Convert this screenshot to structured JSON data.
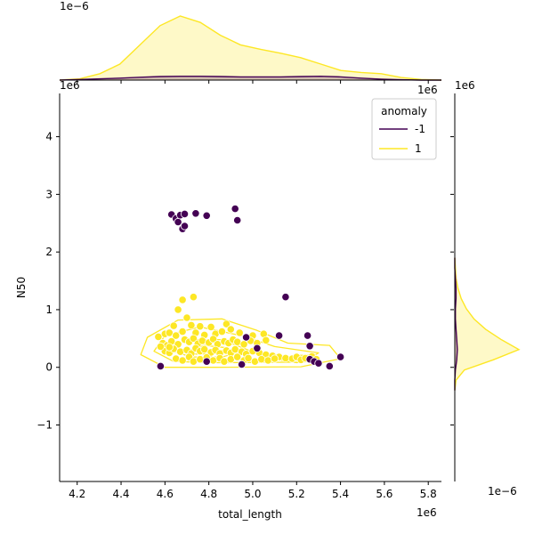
{
  "chart_data": {
    "type": "scatter",
    "xlabel": "total_length",
    "ylabel": "N50",
    "x_scale_label": "1e6",
    "y_scale_label": "1e6",
    "top_marginal_scale_label": "1e−6",
    "right_marginal_scale_label": "1e−6",
    "right_marginal_top_label": "1e6",
    "top_marginal_right_label": "1e6",
    "xlim": [
      4.12,
      5.86
    ],
    "ylim": [
      -1.98,
      4.75
    ],
    "xticks": [
      "4.2",
      "4.4",
      "4.6",
      "4.8",
      "5.0",
      "5.2",
      "5.4",
      "5.6",
      "5.8"
    ],
    "yticks": [
      "−1",
      "0",
      "1",
      "2",
      "3",
      "4"
    ],
    "legend": {
      "title": "anomaly",
      "placement": "top-right",
      "entries": [
        {
          "label": "-1",
          "color": "#440154"
        },
        {
          "label": "1",
          "color": "#fde725"
        }
      ]
    },
    "series": [
      {
        "name": "-1",
        "color": "#440154",
        "points": [
          [
            4.63,
            2.65
          ],
          [
            4.65,
            2.58
          ],
          [
            4.66,
            2.52
          ],
          [
            4.67,
            2.64
          ],
          [
            4.69,
            2.66
          ],
          [
            4.68,
            2.4
          ],
          [
            4.69,
            2.45
          ],
          [
            4.74,
            2.67
          ],
          [
            4.79,
            2.63
          ],
          [
            4.92,
            2.75
          ],
          [
            4.93,
            2.55
          ],
          [
            5.15,
            1.22
          ],
          [
            5.12,
            0.55
          ],
          [
            5.25,
            0.55
          ],
          [
            5.26,
            0.37
          ],
          [
            5.26,
            0.14
          ],
          [
            5.28,
            0.1
          ],
          [
            5.3,
            0.07
          ],
          [
            5.35,
            0.02
          ],
          [
            5.4,
            0.18
          ],
          [
            4.58,
            0.02
          ],
          [
            4.79,
            0.1
          ],
          [
            4.95,
            0.05
          ],
          [
            5.02,
            0.33
          ],
          [
            4.97,
            0.52
          ]
        ]
      },
      {
        "name": "1",
        "color": "#fde725",
        "points": [
          [
            4.68,
            1.17
          ],
          [
            4.73,
            1.22
          ],
          [
            4.66,
            1.0
          ],
          [
            4.7,
            0.86
          ],
          [
            4.64,
            0.72
          ],
          [
            4.72,
            0.73
          ],
          [
            4.76,
            0.71
          ],
          [
            4.81,
            0.7
          ],
          [
            4.88,
            0.75
          ],
          [
            4.6,
            0.58
          ],
          [
            4.62,
            0.6
          ],
          [
            4.57,
            0.53
          ],
          [
            4.65,
            0.55
          ],
          [
            4.68,
            0.62
          ],
          [
            4.74,
            0.6
          ],
          [
            4.78,
            0.56
          ],
          [
            4.83,
            0.58
          ],
          [
            4.86,
            0.62
          ],
          [
            4.9,
            0.66
          ],
          [
            4.94,
            0.6
          ],
          [
            5.0,
            0.55
          ],
          [
            5.05,
            0.58
          ],
          [
            4.59,
            0.42
          ],
          [
            4.61,
            0.38
          ],
          [
            4.63,
            0.45
          ],
          [
            4.66,
            0.4
          ],
          [
            4.69,
            0.48
          ],
          [
            4.71,
            0.44
          ],
          [
            4.73,
            0.5
          ],
          [
            4.75,
            0.41
          ],
          [
            4.77,
            0.46
          ],
          [
            4.8,
            0.43
          ],
          [
            4.82,
            0.49
          ],
          [
            4.84,
            0.4
          ],
          [
            4.87,
            0.45
          ],
          [
            4.89,
            0.42
          ],
          [
            4.91,
            0.48
          ],
          [
            4.93,
            0.44
          ],
          [
            4.96,
            0.4
          ],
          [
            4.99,
            0.46
          ],
          [
            5.02,
            0.42
          ],
          [
            5.06,
            0.47
          ],
          [
            4.6,
            0.28
          ],
          [
            4.62,
            0.25
          ],
          [
            4.64,
            0.32
          ],
          [
            4.67,
            0.27
          ],
          [
            4.7,
            0.3
          ],
          [
            4.72,
            0.24
          ],
          [
            4.74,
            0.33
          ],
          [
            4.76,
            0.28
          ],
          [
            4.78,
            0.31
          ],
          [
            4.81,
            0.26
          ],
          [
            4.83,
            0.3
          ],
          [
            4.85,
            0.24
          ],
          [
            4.88,
            0.29
          ],
          [
            4.9,
            0.25
          ],
          [
            4.92,
            0.31
          ],
          [
            4.95,
            0.27
          ],
          [
            4.97,
            0.23
          ],
          [
            5.0,
            0.28
          ],
          [
            5.03,
            0.25
          ],
          [
            5.06,
            0.22
          ],
          [
            5.09,
            0.2
          ],
          [
            5.12,
            0.18
          ],
          [
            5.15,
            0.16
          ],
          [
            5.18,
            0.15
          ],
          [
            5.2,
            0.18
          ],
          [
            5.22,
            0.13
          ],
          [
            5.24,
            0.16
          ],
          [
            5.27,
            0.19
          ],
          [
            5.29,
            0.14
          ],
          [
            4.65,
            0.15
          ],
          [
            4.68,
            0.12
          ],
          [
            4.71,
            0.18
          ],
          [
            4.73,
            0.1
          ],
          [
            4.76,
            0.14
          ],
          [
            4.79,
            0.17
          ],
          [
            4.82,
            0.12
          ],
          [
            4.85,
            0.16
          ],
          [
            4.87,
            0.1
          ],
          [
            4.9,
            0.14
          ],
          [
            4.93,
            0.18
          ],
          [
            4.96,
            0.12
          ],
          [
            4.98,
            0.16
          ],
          [
            5.01,
            0.1
          ],
          [
            5.04,
            0.14
          ],
          [
            5.07,
            0.12
          ],
          [
            5.1,
            0.15
          ],
          [
            4.62,
            0.35
          ],
          [
            4.58,
            0.36
          ]
        ]
      }
    ],
    "top_marginal": {
      "series": [
        {
          "name": "1",
          "color": "#fde725",
          "density": [
            0,
            0.02,
            0.1,
            0.25,
            0.55,
            0.85,
            1.0,
            0.9,
            0.7,
            0.55,
            0.48,
            0.42,
            0.35,
            0.25,
            0.15,
            0.12,
            0.1,
            0.04,
            0.01,
            0
          ]
        },
        {
          "name": "-1",
          "color": "#440154",
          "density": [
            0,
            0.01,
            0.02,
            0.03,
            0.045,
            0.055,
            0.06,
            0.06,
            0.055,
            0.05,
            0.05,
            0.05,
            0.055,
            0.06,
            0.05,
            0.03,
            0.015,
            0.005,
            0,
            0
          ]
        }
      ],
      "x_start": 4.12,
      "x_end": 5.86
    },
    "right_marginal": {
      "series": [
        {
          "name": "1",
          "color": "#fde725",
          "density": [
            0,
            0.02,
            0.15,
            0.6,
            1.0,
            0.72,
            0.48,
            0.3,
            0.18,
            0.1,
            0.05,
            0.02,
            0.01,
            0
          ]
        },
        {
          "name": "-1",
          "color": "#440154",
          "density": [
            0,
            0,
            0.01,
            0.03,
            0.04,
            0.03,
            0.02,
            0.01,
            0.01,
            0.02,
            0.02,
            0.01,
            0,
            0
          ]
        }
      ],
      "y_start": -0.4,
      "y_end": 1.9
    },
    "grid": false
  }
}
